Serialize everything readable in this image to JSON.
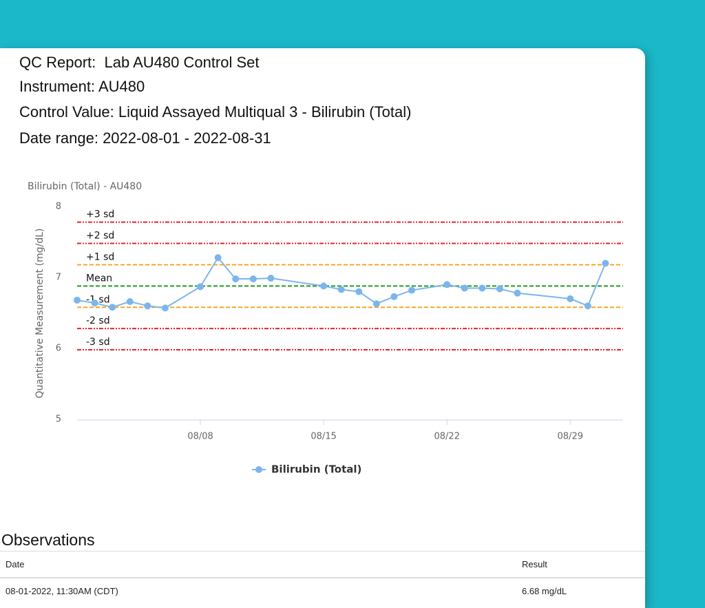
{
  "header": {
    "title": "QC Report:  Lab AU480 Control Set",
    "instrument": "Instrument: AU480",
    "control": "Control Value: Liquid Assayed Multiqual 3 - Bilirubin (Total)",
    "date_range": "Date range: 2022-08-01 - 2022-08-31"
  },
  "chart_data": {
    "type": "line",
    "title": "Bilirubin (Total) - AU480",
    "y_label": "Quantitative Measurement (mg/dL)",
    "x": [
      "08/01",
      "08/02",
      "08/03",
      "08/04",
      "08/05",
      "08/06",
      "08/08",
      "08/09",
      "08/10",
      "08/11",
      "08/12",
      "08/15",
      "08/16",
      "08/17",
      "08/18",
      "08/19",
      "08/20",
      "08/22",
      "08/23",
      "08/24",
      "08/25",
      "08/26",
      "08/29",
      "08/30",
      "08/31"
    ],
    "series": [
      {
        "name": "Bilirubin (Total)",
        "color": "#7cb5ec",
        "values": [
          6.68,
          6.64,
          6.58,
          6.66,
          6.6,
          6.57,
          6.87,
          7.28,
          6.98,
          6.98,
          6.99,
          6.88,
          6.83,
          6.8,
          6.63,
          6.73,
          6.82,
          6.9,
          6.85,
          6.85,
          6.84,
          6.78,
          6.7,
          6.6,
          7.2
        ]
      }
    ],
    "xlim": [
      "08/01",
      "09/01"
    ],
    "xticks": [
      "08/08",
      "08/15",
      "08/22",
      "08/29"
    ],
    "ylim": [
      5,
      8
    ],
    "yticks": [
      5,
      6,
      7,
      8
    ],
    "grid": false,
    "limits": [
      {
        "label": "+3 sd",
        "value": 7.78,
        "color": "#e8212b",
        "style": "dash-dot-dot"
      },
      {
        "label": "+2 sd",
        "value": 7.48,
        "color": "#e8212b",
        "style": "dash-dot-dot"
      },
      {
        "label": "+1 sd",
        "value": 7.18,
        "color": "#f5a623",
        "style": "dashed"
      },
      {
        "label": "Mean",
        "value": 6.88,
        "color": "#1e9a1e",
        "style": "dashed"
      },
      {
        "label": "-1 sd",
        "value": 6.58,
        "color": "#f5a623",
        "style": "dashed"
      },
      {
        "label": "-2 sd",
        "value": 6.28,
        "color": "#e8212b",
        "style": "dash-dot-dot"
      },
      {
        "label": "-3 sd",
        "value": 5.98,
        "color": "#e8212b",
        "style": "dash-dot-dot"
      }
    ]
  },
  "observations": {
    "title": "Observations",
    "columns": [
      "Date",
      "Result"
    ],
    "rows": [
      [
        "08-01-2022, 11:30AM (CDT)",
        "6.68 mg/dL"
      ]
    ]
  }
}
